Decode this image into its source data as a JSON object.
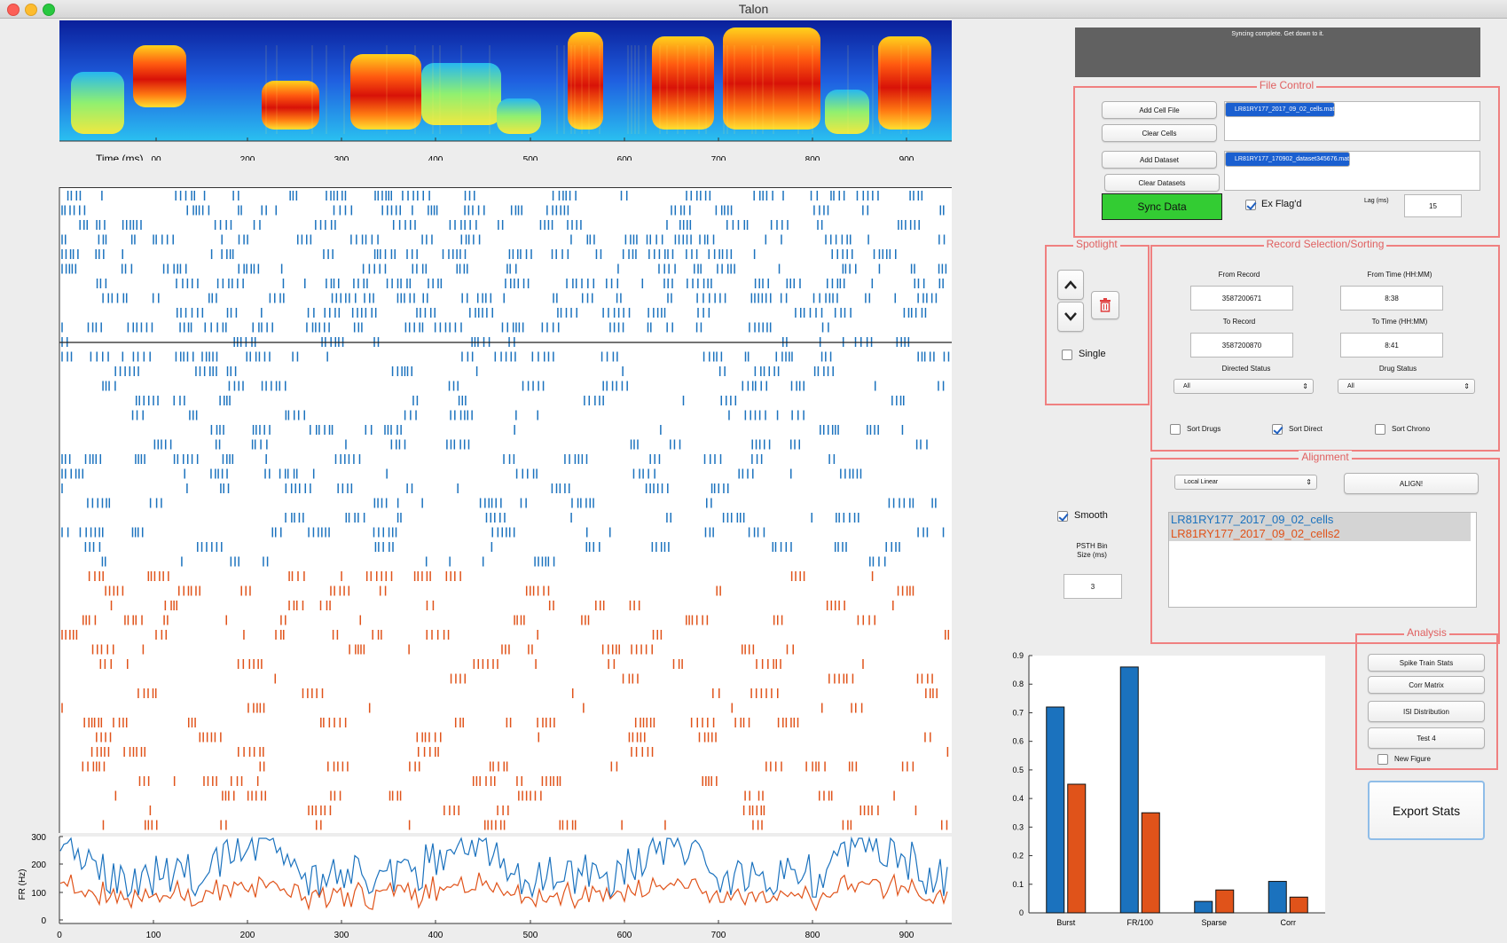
{
  "window": {
    "title": "Talon"
  },
  "colors": {
    "blue": "#1b72be",
    "orange": "#e0531a",
    "sync_green": "#33cc33",
    "panel_border": "#f08080"
  },
  "spectrogram": {
    "xlabel": "Time (ms)",
    "xticks": [
      "00",
      "200",
      "300",
      "400",
      "500",
      "600",
      "700",
      "800",
      "900"
    ]
  },
  "psth": {
    "ylabel": "FR (Hz)",
    "yticks": [
      "300",
      "200",
      "100",
      "0"
    ],
    "xticks": [
      "0",
      "100",
      "200",
      "300",
      "400",
      "500",
      "600",
      "700",
      "800",
      "900"
    ]
  },
  "status": {
    "message": "Syncing complete. Get down to it."
  },
  "file_control": {
    "title": "File Control",
    "add_cell": "Add Cell File",
    "clear_cells": "Clear Cells",
    "add_dataset": "Add Dataset",
    "clear_datasets": "Clear Datasets",
    "cells": [
      "LR81RY177_2017_09_02_cells.mat",
      "LR81RY177_2017_09_02_cells2.mat"
    ],
    "datasets": [
      "LR81RY177_170902_dataset345676.mat"
    ],
    "sync": "Sync Data",
    "exflag": "Ex Flag'd",
    "lag_label": "Lag (ms)",
    "lag_value": "15"
  },
  "spotlight": {
    "title": "Spotlight",
    "single": "Single",
    "up_icon": "chevron-up",
    "down_icon": "chevron-down",
    "delete_icon": "trash"
  },
  "record": {
    "title": "Record Selection/Sorting",
    "from_record_label": "From Record",
    "from_record": "3587200671",
    "from_time_label": "From Time (HH:MM)",
    "from_time": "8:38",
    "to_record_label": "To Record",
    "to_record": "3587200870",
    "to_time_label": "To Time (HH:MM)",
    "to_time": "8:41",
    "directed_label": "Directed Status",
    "directed": "All",
    "drug_label": "Drug Status",
    "drug": "All",
    "sort_drugs": "Sort Drugs",
    "sort_direct": "Sort Direct",
    "sort_chrono": "Sort Chrono"
  },
  "alignment": {
    "title": "Alignment",
    "method": "Local Linear",
    "align": "ALIGN!",
    "items": [
      "LR81RY177_2017_09_02_cells",
      "LR81RY177_2017_09_02_cells2"
    ]
  },
  "smooth": {
    "label": "Smooth",
    "bin_label_1": "PSTH Bin",
    "bin_label_2": "Size (ms)",
    "bin_value": "3"
  },
  "analysis": {
    "title": "Analysis",
    "buttons": [
      "Spike Train Stats",
      "Corr Matrix",
      "ISI Distribution",
      "Test 4"
    ],
    "new_figure": "New Figure"
  },
  "export": {
    "label": "Export Stats"
  },
  "chart_data": {
    "type": "bar",
    "categories": [
      "Burst",
      "FR/100",
      "Sparse",
      "Corr"
    ],
    "series": [
      {
        "values": [
          0.72,
          0.86,
          0.04,
          0.11
        ],
        "color": "#1b72be"
      },
      {
        "values": [
          0.45,
          0.35,
          0.08,
          0.055
        ],
        "color": "#e0531a"
      }
    ],
    "ylim": [
      0,
      0.9
    ],
    "yticks": [
      "0.9",
      "0.8",
      "0.7",
      "0.6",
      "0.5",
      "0.4",
      "0.3",
      "0.2",
      "0.1",
      "0"
    ]
  }
}
